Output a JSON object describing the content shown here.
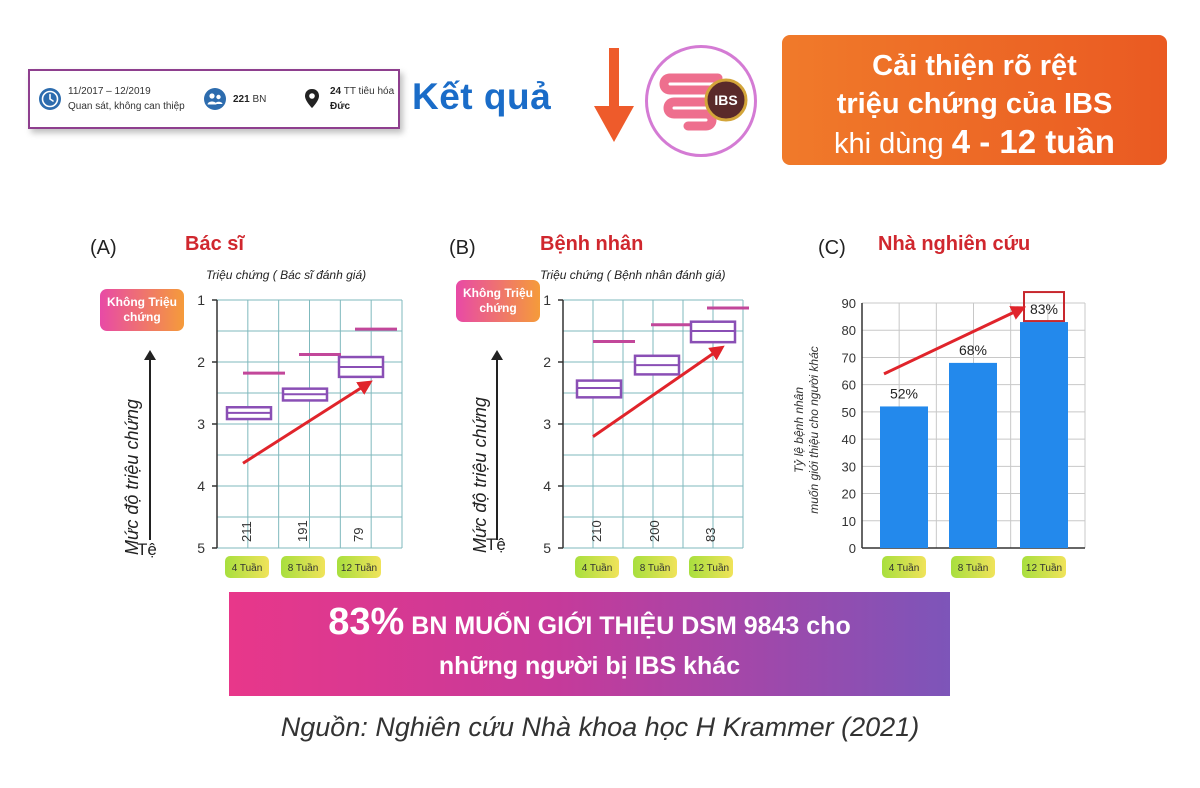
{
  "study_info": {
    "period": "11/2017 – 12/2019",
    "method": "Quan sát, không can thiệp",
    "patients_num": "221",
    "patients_unit": "BN",
    "centers_num": "24",
    "centers_unit": "TT tiêu hóa",
    "country": "Đức"
  },
  "header": {
    "result_title": "Kết quả",
    "ibs_badge": "IBS",
    "improve_line1": "Cải thiện rõ rệt",
    "improve_line2": "triệu chứng của IBS",
    "improve_line3_prefix": "khi dùng",
    "improve_line3_bold": "4 - 12 tuần"
  },
  "panels": {
    "a_label": "(A)",
    "a_title": "Bác sĩ",
    "a_caption": "Triệu chứng ( Bác sĩ đánh giá)",
    "b_label": "(B)",
    "b_title": "Bệnh nhân",
    "b_caption": "Triệu chứng ( Bệnh nhân đánh giá)",
    "c_label": "(C)",
    "c_title": "Nhà nghiên cứu",
    "symptom_free": "Không Triệu chứng",
    "severity_axis": "Mức độ triệu chứng",
    "worse": "Tệ",
    "c_ylabel_line1": "Tỷ lệ bệnh nhân",
    "c_ylabel_line2": "muốn giới thiệu cho người khác"
  },
  "chart_data": [
    {
      "type": "box",
      "title": "Bác sĩ",
      "subtitle": "Triệu chứng ( Bác sĩ đánh giá)",
      "ylabel": "Mức độ triệu chứng",
      "ylim": [
        5,
        1
      ],
      "y_ticks": [
        1,
        2,
        3,
        4,
        5
      ],
      "categories": [
        "4 Tuần",
        "8 Tuần",
        "12 Tuần"
      ],
      "n": [
        "211",
        "191",
        "79"
      ],
      "boxes": [
        {
          "q1": 2.73,
          "median": 2.82,
          "q3": 2.92,
          "whisker": 2.18
        },
        {
          "q1": 2.43,
          "median": 2.52,
          "q3": 2.62,
          "whisker": 1.88
        },
        {
          "q1": 1.92,
          "median": 2.08,
          "q3": 2.24,
          "whisker": 1.47
        }
      ]
    },
    {
      "type": "box",
      "title": "Bệnh nhân",
      "subtitle": "Triệu chứng ( Bệnh nhân đánh giá)",
      "ylabel": "Mức độ triệu chứng",
      "ylim": [
        5,
        1
      ],
      "y_ticks": [
        1,
        2,
        3,
        4,
        5
      ],
      "categories": [
        "4 Tuần",
        "8 Tuần",
        "12 Tuần"
      ],
      "n": [
        "210",
        "200",
        "83"
      ],
      "boxes": [
        {
          "q1": 2.3,
          "median": 2.42,
          "q3": 2.57,
          "whisker": 1.67
        },
        {
          "q1": 1.9,
          "median": 2.05,
          "q3": 2.2,
          "whisker": 1.4
        },
        {
          "q1": 1.35,
          "median": 1.5,
          "q3": 1.68,
          "whisker": 1.13
        }
      ]
    },
    {
      "type": "bar",
      "title": "Nhà nghiên cứu",
      "ylabel": "Tỷ lệ bệnh nhân muốn giới thiệu cho người khác",
      "ylim": [
        0,
        90
      ],
      "y_ticks": [
        0,
        10,
        20,
        30,
        40,
        50,
        60,
        70,
        80,
        90
      ],
      "categories": [
        "4 Tuần",
        "8 Tuần",
        "12 Tuần"
      ],
      "values": [
        52,
        68,
        83
      ],
      "value_labels": [
        "52%",
        "68%",
        "83%"
      ],
      "colors": {
        "bar": "#2389ec",
        "trend_arrow": "#e0242b",
        "highlight_box": "#c8282e"
      }
    }
  ],
  "banner": {
    "percent": "83%",
    "line1_rest": "BN MUỐN GIỚI THIỆU DSM 9843 cho",
    "line2": "những người bị IBS khác"
  },
  "source": "Nguồn: Nghiên cứu Nhà khoa học H Krammer (2021)",
  "colors": {
    "grid": "#7fb9bd",
    "box_stroke": "#8a4fb5",
    "whisker": "#c2479a",
    "arrow": "#e0242b",
    "week_pill_start": "#a8df3e",
    "week_pill_end": "#f0e35a"
  }
}
